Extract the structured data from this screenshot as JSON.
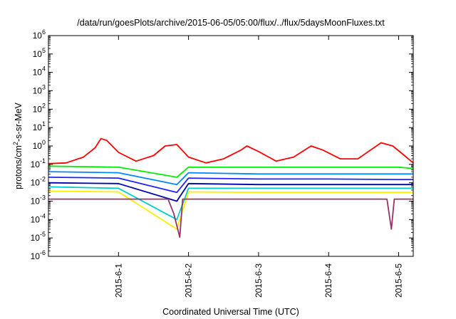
{
  "chart_data": {
    "type": "line",
    "title": "/data/run/goesPlots/archive/2015-06-05/05:00/flux/../flux/5daysMoonFluxes.txt",
    "xlabel": "Coordinated Universal Time (UTC)",
    "ylabel_parts": {
      "pre": "protons/cm",
      "sup": "2",
      "post": "-s-sr-MeV"
    },
    "yscale": "log",
    "ylim_exp": [
      -6,
      6
    ],
    "y_tick_labels": [
      {
        "exp": -6,
        "base": "10",
        "sup": "-6"
      },
      {
        "exp": -5,
        "base": "10",
        "sup": "-5"
      },
      {
        "exp": -4,
        "base": "10",
        "sup": "-4"
      },
      {
        "exp": -3,
        "base": "10",
        "sup": "-3"
      },
      {
        "exp": -2,
        "base": "10",
        "sup": "-2"
      },
      {
        "exp": -1,
        "base": "10",
        "sup": "-1"
      },
      {
        "exp": 0,
        "base": "10",
        "sup": "0"
      },
      {
        "exp": 1,
        "base": "10",
        "sup": "1"
      },
      {
        "exp": 2,
        "base": "10",
        "sup": "2"
      },
      {
        "exp": 3,
        "base": "10",
        "sup": "3"
      },
      {
        "exp": 4,
        "base": "10",
        "sup": "4"
      },
      {
        "exp": 5,
        "base": "10",
        "sup": "5"
      },
      {
        "exp": 6,
        "base": "10",
        "sup": "6"
      }
    ],
    "x_range": [
      "2015-05-31 00:00",
      "2015-06-05 05:00"
    ],
    "x_ticks": [
      {
        "date": "2015-06-01",
        "label": "2015-6-1"
      },
      {
        "date": "2015-06-02",
        "label": "2015-6-2"
      },
      {
        "date": "2015-06-03",
        "label": "2015-6-3"
      },
      {
        "date": "2015-06-04",
        "label": "2015-6-4"
      },
      {
        "date": "2015-06-05",
        "label": "2015-6-5"
      }
    ],
    "grid": false,
    "legend": "none",
    "series": [
      {
        "color": "#ff0000",
        "points": [
          [
            "2015-05-31 00:00",
            0.11
          ],
          [
            "2015-05-31 06:00",
            0.12
          ],
          [
            "2015-05-31 12:00",
            0.25
          ],
          [
            "2015-05-31 16:00",
            0.8
          ],
          [
            "2015-05-31 18:00",
            2.5
          ],
          [
            "2015-05-31 20:00",
            2.0
          ],
          [
            "2015-06-01 00:00",
            0.45
          ],
          [
            "2015-06-01 06:00",
            0.15
          ],
          [
            "2015-06-01 12:00",
            0.3
          ],
          [
            "2015-06-01 16:00",
            1.0
          ],
          [
            "2015-06-01 20:00",
            1.2
          ],
          [
            "2015-06-02 00:00",
            0.25
          ],
          [
            "2015-06-02 06:00",
            0.12
          ],
          [
            "2015-06-02 12:00",
            0.2
          ],
          [
            "2015-06-02 18:00",
            0.6
          ],
          [
            "2015-06-02 20:00",
            1.0
          ],
          [
            "2015-06-03 00:00",
            0.5
          ],
          [
            "2015-06-03 06:00",
            0.15
          ],
          [
            "2015-06-03 12:00",
            0.25
          ],
          [
            "2015-06-03 18:00",
            1.0
          ],
          [
            "2015-06-03 22:00",
            0.6
          ],
          [
            "2015-06-04 04:00",
            0.2
          ],
          [
            "2015-06-04 10:00",
            0.2
          ],
          [
            "2015-06-04 18:00",
            1.5
          ],
          [
            "2015-06-04 22:00",
            1.0
          ],
          [
            "2015-06-05 02:00",
            0.3
          ],
          [
            "2015-06-05 05:00",
            0.12
          ]
        ]
      },
      {
        "color": "#00ee00",
        "points": [
          [
            "2015-05-31 00:00",
            0.08
          ],
          [
            "2015-06-01 00:00",
            0.07
          ],
          [
            "2015-06-01 20:00",
            0.02
          ],
          [
            "2015-06-02 00:00",
            0.07
          ],
          [
            "2015-06-03 00:00",
            0.07
          ],
          [
            "2015-06-04 00:00",
            0.07
          ],
          [
            "2015-06-05 00:00",
            0.07
          ],
          [
            "2015-06-05 05:00",
            0.06
          ]
        ]
      },
      {
        "color": "#0088ff",
        "points": [
          [
            "2015-05-31 00:00",
            0.04
          ],
          [
            "2015-06-01 00:00",
            0.035
          ],
          [
            "2015-06-01 20:00",
            0.008
          ],
          [
            "2015-06-02 00:00",
            0.035
          ],
          [
            "2015-06-03 00:00",
            0.03
          ],
          [
            "2015-06-04 00:00",
            0.03
          ],
          [
            "2015-06-05 00:00",
            0.03
          ],
          [
            "2015-06-05 05:00",
            0.03
          ]
        ]
      },
      {
        "color": "#2222ff",
        "points": [
          [
            "2015-05-31 00:00",
            0.02
          ],
          [
            "2015-06-01 00:00",
            0.018
          ],
          [
            "2015-06-01 20:00",
            0.003
          ],
          [
            "2015-06-02 00:00",
            0.018
          ],
          [
            "2015-06-03 00:00",
            0.016
          ],
          [
            "2015-06-04 00:00",
            0.016
          ],
          [
            "2015-06-05 00:00",
            0.015
          ],
          [
            "2015-06-05 05:00",
            0.015
          ]
        ]
      },
      {
        "color": "#0000aa",
        "points": [
          [
            "2015-05-31 00:00",
            0.01
          ],
          [
            "2015-06-01 00:00",
            0.009
          ],
          [
            "2015-06-01 20:00",
            0.001
          ],
          [
            "2015-06-02 00:00",
            0.009
          ],
          [
            "2015-06-03 00:00",
            0.008
          ],
          [
            "2015-06-04 00:00",
            0.008
          ],
          [
            "2015-06-05 00:00",
            0.008
          ],
          [
            "2015-06-05 05:00",
            0.008
          ]
        ]
      },
      {
        "color": "#00cccc",
        "points": [
          [
            "2015-05-31 00:00",
            0.006
          ],
          [
            "2015-06-01 00:00",
            0.005
          ],
          [
            "2015-06-01 20:00",
            0.0001
          ],
          [
            "2015-06-02 00:00",
            0.005
          ],
          [
            "2015-06-03 00:00",
            0.005
          ],
          [
            "2015-06-04 00:00",
            0.005
          ],
          [
            "2015-06-05 00:00",
            0.005
          ],
          [
            "2015-06-05 05:00",
            0.005
          ]
        ]
      },
      {
        "color": "#ffee00",
        "points": [
          [
            "2015-05-31 00:00",
            0.0035
          ],
          [
            "2015-06-01 00:00",
            0.0032
          ],
          [
            "2015-06-01 20:00",
            3e-05
          ],
          [
            "2015-06-02 00:00",
            0.0032
          ],
          [
            "2015-06-03 00:00",
            0.003
          ],
          [
            "2015-06-04 00:00",
            0.003
          ],
          [
            "2015-06-05 00:00",
            0.003
          ],
          [
            "2015-06-05 05:00",
            0.003
          ]
        ]
      },
      {
        "color": "#993366",
        "points": [
          [
            "2015-05-31 00:00",
            0.0013
          ],
          [
            "2015-06-01 00:00",
            0.0013
          ],
          [
            "2015-06-01 17:00",
            0.0013
          ],
          [
            "2015-06-01 19:00",
            0.0002
          ],
          [
            "2015-06-01 21:00",
            1.1e-05
          ],
          [
            "2015-06-01 22:00",
            0.0013
          ],
          [
            "2015-06-03 00:00",
            0.0013
          ],
          [
            "2015-06-04 00:00",
            0.0013
          ],
          [
            "2015-06-04 20:00",
            0.0013
          ],
          [
            "2015-06-04 21:30",
            3e-05
          ],
          [
            "2015-06-04 22:30",
            0.0013
          ],
          [
            "2015-06-05 05:00",
            0.0013
          ]
        ]
      }
    ]
  }
}
